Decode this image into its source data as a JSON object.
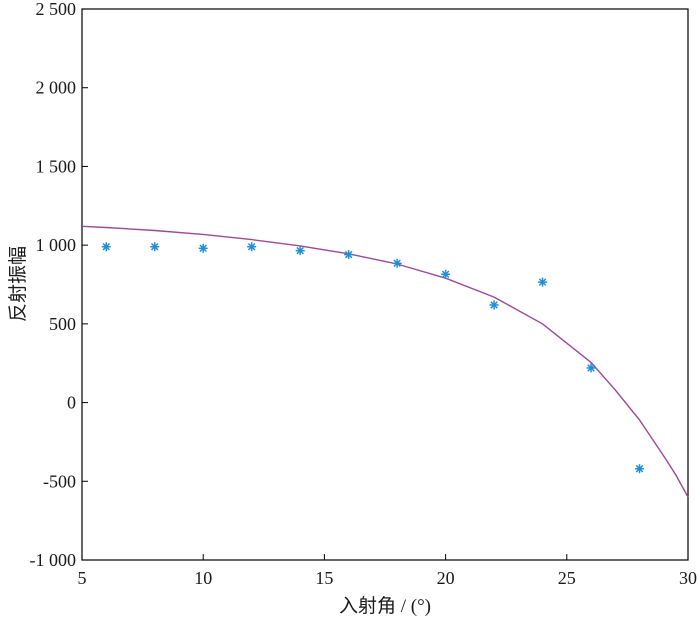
{
  "chart_data": {
    "type": "scatter",
    "title": "",
    "xlabel": "入射角 / (°)",
    "ylabel": "反射振幅",
    "xlim": [
      5,
      30
    ],
    "ylim": [
      -1000,
      2500
    ],
    "x_ticks": [
      5,
      10,
      15,
      20,
      25,
      30
    ],
    "x_tick_labels": [
      "5",
      "10",
      "15",
      "20",
      "25",
      "30"
    ],
    "y_ticks": [
      -1000,
      -500,
      0,
      500,
      1000,
      1500,
      2000,
      2500
    ],
    "y_tick_labels": [
      "-1 000",
      "-500",
      "0",
      "500",
      "1 000",
      "1 500",
      "2 000",
      "2 500"
    ],
    "grid": false,
    "series": [
      {
        "type": "scatter",
        "marker": "asterisk",
        "color": "#1f8fd6",
        "x": [
          6,
          8,
          10,
          12,
          14,
          16,
          18,
          20,
          22,
          24,
          26,
          28
        ],
        "y": [
          990,
          990,
          980,
          990,
          965,
          940,
          885,
          815,
          620,
          765,
          220,
          -420
        ]
      },
      {
        "type": "line",
        "color": "#a0479d",
        "x": [
          5,
          6,
          8,
          10,
          12,
          14,
          16,
          18,
          20,
          22,
          24,
          26,
          27,
          28,
          29,
          29.5,
          30
        ],
        "y": [
          1120,
          1112,
          1093,
          1068,
          1035,
          995,
          945,
          880,
          790,
          670,
          500,
          255,
          80,
          -110,
          -340,
          -460,
          -600
        ]
      }
    ]
  }
}
